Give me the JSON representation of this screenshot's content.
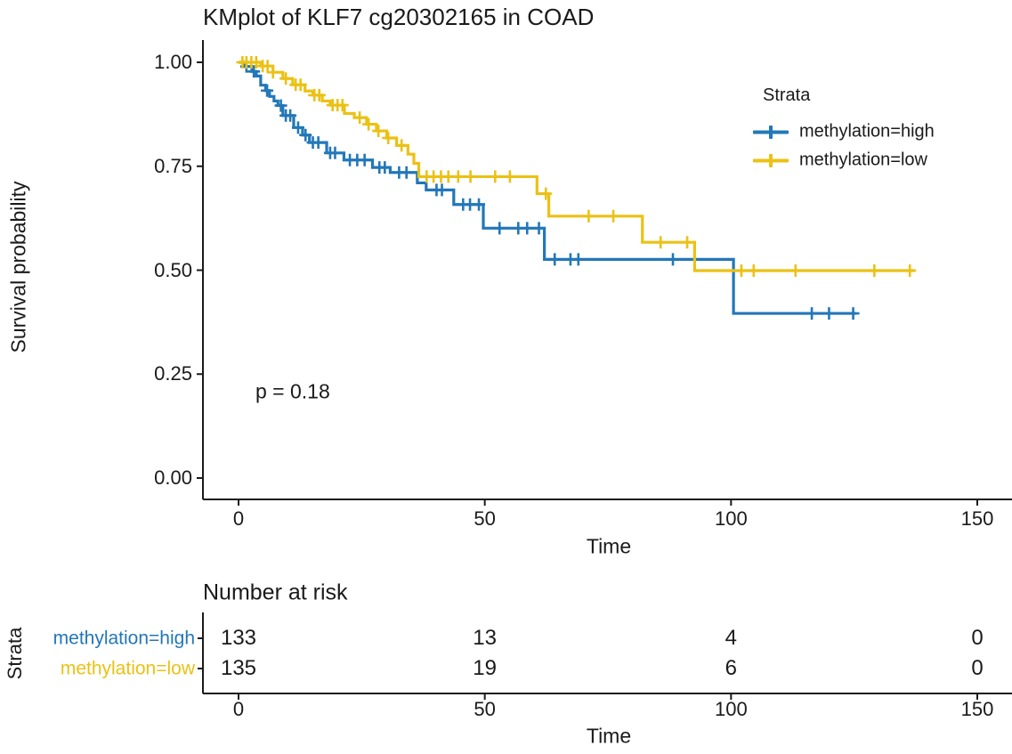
{
  "chart_data": {
    "type": "line",
    "subtype": "kaplan-meier-step-curves",
    "title": "KMplot of KLF7 cg20302165 in COAD",
    "xlabel": "Time",
    "ylabel": "Survival probability",
    "p_value_text": "p = 0.18",
    "legend_title": "Strata",
    "legend_position": "inside-top-right",
    "grid": false,
    "xlim": [
      0,
      150
    ],
    "ylim": [
      0,
      1
    ],
    "x_ticks": [
      0,
      50,
      100,
      150
    ],
    "x_tick_labels": [
      "0",
      "50",
      "100",
      "150"
    ],
    "y_ticks": [
      0,
      0.25,
      0.5,
      0.75,
      1
    ],
    "y_tick_labels": [
      "0.00",
      "0.25",
      "0.50",
      "0.75",
      "1.00"
    ],
    "series": [
      {
        "name": "methylation=high",
        "color": "#2277B8",
        "n_start": 133,
        "steps": [
          [
            0,
            1.0
          ],
          [
            1.3,
            0.99
          ],
          [
            2.7,
            0.978
          ],
          [
            3.6,
            0.967
          ],
          [
            4.5,
            0.945
          ],
          [
            5.5,
            0.932
          ],
          [
            6.3,
            0.918
          ],
          [
            7.2,
            0.907
          ],
          [
            8.0,
            0.896
          ],
          [
            9.0,
            0.872
          ],
          [
            11.2,
            0.843
          ],
          [
            13.0,
            0.825
          ],
          [
            14.4,
            0.807
          ],
          [
            17.9,
            0.782
          ],
          [
            21.4,
            0.765
          ],
          [
            27.2,
            0.747
          ],
          [
            30.8,
            0.735
          ],
          [
            36.3,
            0.71
          ],
          [
            38.1,
            0.693
          ],
          [
            43.7,
            0.658
          ],
          [
            49.7,
            0.601
          ],
          [
            62.1,
            0.526
          ],
          [
            100.5,
            0.396
          ]
        ],
        "end_time": 125.4,
        "censor_times": [
          1.6,
          3.1,
          5.8,
          8.6,
          9.6,
          10.5,
          12.1,
          13.6,
          15.1,
          16.2,
          18.6,
          19.6,
          22.6,
          24.1,
          25.6,
          28.6,
          29.7,
          32.6,
          34.1,
          40.2,
          41.3,
          45.6,
          47.0,
          48.8,
          53.0,
          56.8,
          58.6,
          61.0,
          64.2,
          67.4,
          69.0,
          88.2,
          116.4,
          119.9,
          124.8
        ]
      },
      {
        "name": "methylation=low",
        "color": "#EBC115",
        "n_start": 135,
        "steps": [
          [
            0,
            1.0
          ],
          [
            4.5,
            0.991
          ],
          [
            7.0,
            0.976
          ],
          [
            9.0,
            0.961
          ],
          [
            11.0,
            0.946
          ],
          [
            13.5,
            0.931
          ],
          [
            15.1,
            0.921
          ],
          [
            17.0,
            0.907
          ],
          [
            18.6,
            0.897
          ],
          [
            21.5,
            0.877
          ],
          [
            23.5,
            0.867
          ],
          [
            26.0,
            0.851
          ],
          [
            28.0,
            0.835
          ],
          [
            30.1,
            0.818
          ],
          [
            32.1,
            0.8
          ],
          [
            34.4,
            0.779
          ],
          [
            35.6,
            0.757
          ],
          [
            36.6,
            0.725
          ],
          [
            60.6,
            0.684
          ],
          [
            63.0,
            0.63
          ],
          [
            82.0,
            0.567
          ],
          [
            92.6,
            0.499
          ]
        ],
        "end_time": 137.3,
        "censor_times": [
          0.8,
          1.6,
          2.6,
          3.6,
          4.9,
          5.9,
          7.0,
          9.6,
          11.6,
          12.6,
          15.4,
          16.4,
          19.1,
          20.1,
          21.1,
          24.6,
          26.4,
          28.4,
          30.4,
          33.1,
          38.2,
          39.6,
          41.1,
          42.6,
          44.6,
          47.1,
          52.1,
          55.1,
          62.4,
          71.1,
          76.1,
          85.7,
          91.1,
          102.1,
          104.6,
          113.1,
          129.1,
          136.3
        ]
      }
    ]
  },
  "risk_table": {
    "heading": "Number at risk",
    "axis_label": "Strata",
    "xlabel": "Time",
    "times": [
      0,
      50,
      100,
      150
    ],
    "x_tick_labels": [
      "0",
      "50",
      "100",
      "150"
    ],
    "rows": [
      {
        "label": "methylation=high",
        "color": "#2277B8",
        "values": [
          133,
          13,
          4,
          0
        ]
      },
      {
        "label": "methylation=low",
        "color": "#EBC115",
        "values": [
          135,
          19,
          6,
          0
        ]
      }
    ]
  }
}
